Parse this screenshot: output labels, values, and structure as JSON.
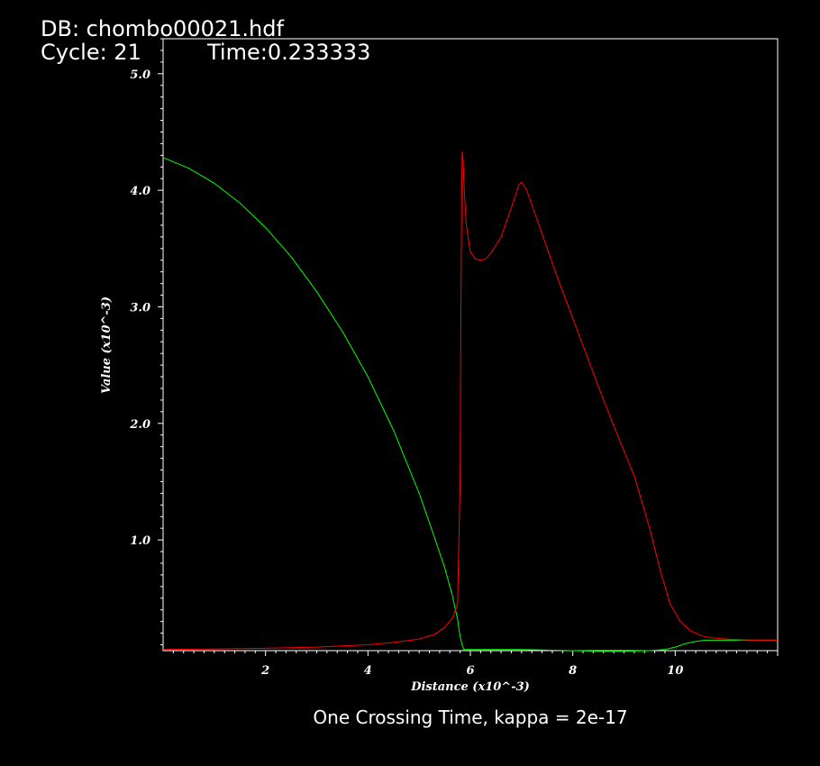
{
  "header": {
    "db_label": "DB: chombo00021.hdf",
    "cycle_label": "Cycle: 21",
    "time_label": "Time:0.233333"
  },
  "chart_data": {
    "type": "line",
    "title": "One Crossing Time, kappa = 2e-17",
    "xlabel": "Distance (x10^-3)",
    "ylabel": "Value (x10^-3)",
    "xlim": [
      0,
      12
    ],
    "ylim": [
      0.05,
      5.3
    ],
    "x_ticks": [
      2,
      4,
      6,
      8,
      10
    ],
    "x_tick_labels": [
      "2",
      "4",
      "6",
      "8",
      "10"
    ],
    "y_ticks": [
      1.0,
      2.0,
      3.0,
      4.0,
      5.0
    ],
    "y_tick_labels": [
      "1.0",
      "2.0",
      "3.0",
      "4.0",
      "5.0"
    ],
    "grid": false,
    "series": [
      {
        "color": "#00ff00",
        "x": [
          0.0,
          0.5,
          1.0,
          1.5,
          2.0,
          2.5,
          3.0,
          3.5,
          4.0,
          4.5,
          5.0,
          5.3,
          5.5,
          5.65,
          5.75,
          5.8,
          5.84,
          5.87,
          6.0,
          6.5,
          7.0,
          7.5,
          8.0,
          8.5,
          9.0,
          9.5,
          9.8,
          10.0,
          10.2,
          10.4,
          10.6,
          11.0,
          11.5,
          12.0
        ],
        "y": [
          4.28,
          4.19,
          4.06,
          3.89,
          3.68,
          3.43,
          3.13,
          2.79,
          2.4,
          1.94,
          1.4,
          1.02,
          0.76,
          0.52,
          0.32,
          0.17,
          0.1,
          0.06,
          0.06,
          0.06,
          0.06,
          0.055,
          0.05,
          0.045,
          0.045,
          0.05,
          0.06,
          0.08,
          0.11,
          0.13,
          0.14,
          0.14,
          0.14,
          0.14
        ]
      },
      {
        "color": "#ff0000",
        "x": [
          0.0,
          1.0,
          2.0,
          3.0,
          3.5,
          4.0,
          4.5,
          5.0,
          5.3,
          5.5,
          5.65,
          5.75,
          5.8,
          5.82,
          5.84,
          5.86,
          5.88,
          5.92,
          6.0,
          6.1,
          6.2,
          6.3,
          6.4,
          6.6,
          6.8,
          6.95,
          7.0,
          7.1,
          7.3,
          7.5,
          7.7,
          8.0,
          8.3,
          8.6,
          8.9,
          9.2,
          9.5,
          9.7,
          9.9,
          10.1,
          10.3,
          10.5,
          10.7,
          11.0,
          11.5,
          12.0
        ],
        "y": [
          0.06,
          0.065,
          0.07,
          0.08,
          0.09,
          0.1,
          0.12,
          0.15,
          0.19,
          0.25,
          0.33,
          0.45,
          1.5,
          3.4,
          4.33,
          4.25,
          4.0,
          3.7,
          3.47,
          3.41,
          3.4,
          3.41,
          3.46,
          3.6,
          3.85,
          4.05,
          4.07,
          4.0,
          3.75,
          3.5,
          3.25,
          2.9,
          2.55,
          2.2,
          1.87,
          1.55,
          1.1,
          0.75,
          0.45,
          0.3,
          0.22,
          0.18,
          0.16,
          0.15,
          0.14,
          0.14
        ]
      }
    ]
  }
}
